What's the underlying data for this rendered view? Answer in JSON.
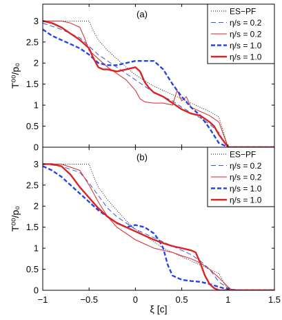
{
  "chart_data": [
    {
      "type": "line",
      "panel_label": "(a)",
      "ylabel": "T⁰⁰/p₀",
      "xlabel": "",
      "xlim": [
        -1,
        1.5
      ],
      "ylim": [
        0,
        3.4
      ],
      "xticks": [],
      "yticks": [
        0,
        0.5,
        1,
        1.5,
        2,
        2.5,
        3
      ],
      "legend_position": "top-right",
      "series": [
        {
          "name": "ES−PF",
          "color": "#000000",
          "dash": "1,2",
          "width": 0.9,
          "x": [
            -1,
            -0.6,
            -0.5,
            -0.45,
            -0.4,
            -0.3,
            -0.2,
            -0.1,
            0,
            0.1,
            0.2,
            0.3,
            0.4,
            0.5,
            0.6,
            0.7,
            0.8,
            0.9,
            1.0,
            1.5
          ],
          "y": [
            3,
            3,
            3,
            2.75,
            2.55,
            2.3,
            2.1,
            1.9,
            1.72,
            1.58,
            1.45,
            1.35,
            1.25,
            1.15,
            1.05,
            0.95,
            0.85,
            0.72,
            0,
            0
          ]
        },
        {
          "name": "η/s = 0.2",
          "color": "#3355dd",
          "dash": "7,4",
          "width": 1.0,
          "x": [
            -1,
            -0.8,
            -0.6,
            -0.5,
            -0.4,
            -0.3,
            -0.2,
            -0.1,
            0,
            0.1,
            0.2,
            0.3,
            0.4,
            0.5,
            0.6,
            0.7,
            0.8,
            0.9,
            0.95,
            1.0,
            1.5
          ],
          "y": [
            2.95,
            2.8,
            2.6,
            2.4,
            2.2,
            2.05,
            1.9,
            1.75,
            1.6,
            1.45,
            1.3,
            1.2,
            1.1,
            0.95,
            0.82,
            0.7,
            0.55,
            0.35,
            0.15,
            0,
            0
          ]
        },
        {
          "name": "η/s = 0.2",
          "color": "#dd2222",
          "dash": "",
          "width": 1.0,
          "x": [
            -1,
            -0.8,
            -0.7,
            -0.6,
            -0.55,
            -0.5,
            -0.4,
            -0.3,
            -0.2,
            -0.1,
            0,
            0.05,
            0.1,
            0.15,
            0.2,
            0.3,
            0.4,
            0.45,
            0.5,
            0.55,
            0.6,
            0.7,
            0.8,
            0.9,
            1.0,
            1.5
          ],
          "y": [
            3,
            3,
            2.95,
            2.85,
            2.6,
            2.3,
            2.1,
            1.9,
            1.75,
            1.6,
            1.35,
            1.15,
            1.08,
            1.06,
            1.05,
            1.05,
            1.0,
            1.35,
            1.1,
            1.2,
            0.95,
            0.85,
            0.75,
            0.6,
            0,
            0
          ]
        },
        {
          "name": "η/s = 1.0",
          "color": "#2244ee",
          "dash": "6,3",
          "width": 2.4,
          "x": [
            -1,
            -0.9,
            -0.8,
            -0.7,
            -0.6,
            -0.5,
            -0.4,
            -0.3,
            -0.2,
            -0.1,
            0,
            0.1,
            0.2,
            0.3,
            0.4,
            0.5,
            0.6,
            0.7,
            0.8,
            0.9,
            1.0,
            1.5
          ],
          "y": [
            2.8,
            2.65,
            2.55,
            2.45,
            2.35,
            2.2,
            2.0,
            1.95,
            1.95,
            2.0,
            2.05,
            2.05,
            2.05,
            1.85,
            1.5,
            1.2,
            0.95,
            0.75,
            0.45,
            0.1,
            0,
            0
          ]
        },
        {
          "name": "η/s = 1.0",
          "color": "#dd2222",
          "dash": "",
          "width": 2.4,
          "x": [
            -1,
            -0.9,
            -0.8,
            -0.7,
            -0.6,
            -0.5,
            -0.45,
            -0.4,
            -0.35,
            -0.3,
            -0.2,
            -0.1,
            0,
            0.05,
            0.1,
            0.15,
            0.2,
            0.3,
            0.4,
            0.5,
            0.6,
            0.7,
            0.8,
            0.85,
            0.9,
            1.0,
            1.5
          ],
          "y": [
            3,
            2.95,
            2.85,
            2.7,
            2.55,
            2.35,
            2.1,
            1.9,
            1.85,
            1.85,
            1.8,
            1.85,
            1.9,
            1.8,
            1.55,
            1.4,
            1.3,
            1.2,
            1.05,
            0.9,
            0.8,
            0.75,
            0.6,
            0.5,
            0.3,
            0,
            0
          ]
        }
      ]
    },
    {
      "type": "line",
      "panel_label": "(b)",
      "ylabel": "T⁰⁰/p₀",
      "xlabel": "ξ [c]",
      "xlim": [
        -1,
        1.5
      ],
      "ylim": [
        0,
        3.4
      ],
      "xticks": [
        -1,
        -0.5,
        0,
        0.5,
        1,
        1.5
      ],
      "yticks": [
        0,
        0.5,
        1,
        1.5,
        2,
        2.5,
        3
      ],
      "legend_position": "top-right",
      "series": [
        {
          "name": "ES−PF",
          "color": "#000000",
          "dash": "1,2",
          "width": 0.9,
          "x": [
            -1,
            -0.6,
            -0.5,
            -0.45,
            -0.4,
            -0.3,
            -0.2,
            -0.1,
            0,
            0.1,
            0.2,
            0.3,
            0.4,
            0.5,
            0.6,
            0.7,
            0.8,
            0.9,
            1.0,
            1.5
          ],
          "y": [
            3,
            3,
            3,
            2.7,
            2.45,
            2.15,
            1.9,
            1.65,
            1.45,
            1.3,
            1.15,
            1.0,
            0.9,
            0.8,
            0.7,
            0.6,
            0.5,
            0.4,
            0,
            0
          ]
        },
        {
          "name": "η/s = 0.2",
          "color": "#3355dd",
          "dash": "7,4",
          "width": 1.0,
          "x": [
            -1,
            -0.8,
            -0.6,
            -0.5,
            -0.4,
            -0.3,
            -0.2,
            -0.1,
            0,
            0.1,
            0.2,
            0.3,
            0.4,
            0.5,
            0.6,
            0.7,
            0.8,
            0.9,
            1.0,
            1.1,
            1.5
          ],
          "y": [
            3,
            2.95,
            2.8,
            2.55,
            2.25,
            1.95,
            1.75,
            1.6,
            1.45,
            1.35,
            1.25,
            1.15,
            1.05,
            0.95,
            0.85,
            0.7,
            0.5,
            0.2,
            0.05,
            0,
            0
          ]
        },
        {
          "name": "η/s = 0.2",
          "color": "#dd2222",
          "dash": "",
          "width": 1.0,
          "x": [
            -1,
            -0.8,
            -0.6,
            -0.5,
            -0.4,
            -0.3,
            -0.2,
            -0.1,
            0,
            0.1,
            0.2,
            0.3,
            0.4,
            0.5,
            0.6,
            0.7,
            0.8,
            0.9,
            1.0,
            1.05,
            1.5
          ],
          "y": [
            3,
            3,
            2.85,
            2.5,
            2.1,
            1.75,
            1.5,
            1.35,
            1.2,
            1.1,
            1.0,
            0.95,
            0.9,
            0.82,
            0.75,
            0.65,
            0.5,
            0.3,
            0.08,
            0,
            0
          ]
        },
        {
          "name": "η/s = 1.0",
          "color": "#2244ee",
          "dash": "6,3",
          "width": 2.4,
          "x": [
            -1,
            -0.9,
            -0.8,
            -0.7,
            -0.6,
            -0.5,
            -0.4,
            -0.3,
            -0.2,
            -0.1,
            0,
            0.1,
            0.2,
            0.25,
            0.3,
            0.35,
            0.4,
            0.5,
            0.6,
            0.7,
            0.8,
            0.9,
            1.0,
            1.1,
            1.5
          ],
          "y": [
            2.95,
            2.85,
            2.7,
            2.5,
            2.3,
            2.1,
            1.9,
            1.75,
            1.6,
            1.5,
            1.55,
            1.5,
            1.35,
            1.2,
            1.0,
            0.6,
            0.35,
            0.25,
            0.22,
            0.2,
            0.15,
            0.08,
            0.02,
            0,
            0
          ]
        },
        {
          "name": "η/s = 1.0",
          "color": "#dd2222",
          "dash": "",
          "width": 2.4,
          "x": [
            -1,
            -0.9,
            -0.8,
            -0.7,
            -0.6,
            -0.5,
            -0.4,
            -0.3,
            -0.2,
            -0.1,
            0,
            0.1,
            0.2,
            0.3,
            0.4,
            0.5,
            0.6,
            0.65,
            0.7,
            0.75,
            0.8,
            0.85,
            0.9,
            1.0,
            1.5
          ],
          "y": [
            3,
            3,
            2.95,
            2.75,
            2.45,
            2.2,
            1.95,
            1.75,
            1.6,
            1.5,
            1.4,
            1.3,
            1.2,
            1.12,
            1.05,
            1.0,
            0.95,
            0.9,
            0.65,
            0.35,
            0.15,
            0.05,
            0,
            0,
            0
          ]
        }
      ]
    }
  ]
}
